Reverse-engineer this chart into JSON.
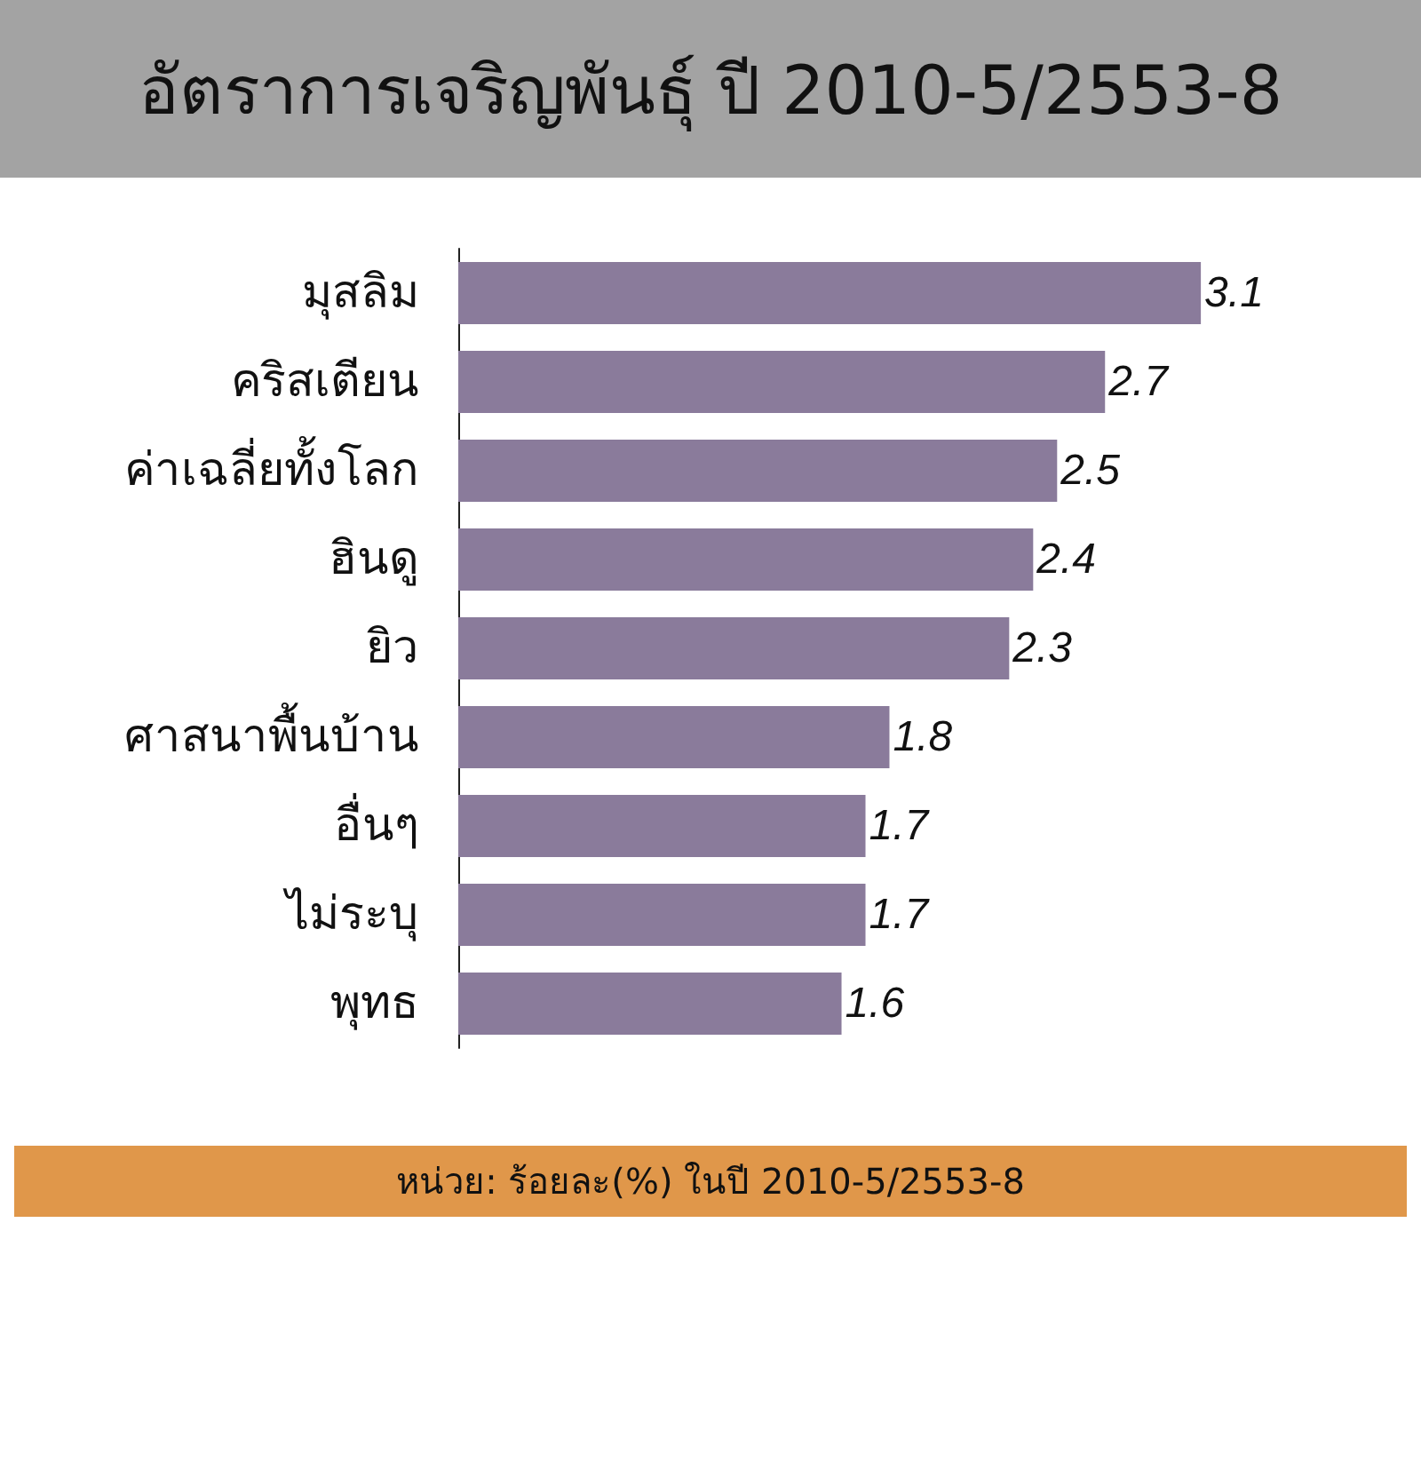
{
  "chart_data": {
    "type": "bar",
    "orientation": "horizontal",
    "title": "อัตราการเจริญพันธุ์ ปี 2010-5/2553-8",
    "categories": [
      "มุสลิม",
      "คริสเตียน",
      "ค่าเฉลี่ยทั้งโลก",
      "ฮินดู",
      "ยิว",
      "ศาสนาพื้นบ้าน",
      "อื่นๆ",
      "ไม่ระบุ",
      "พุทธ"
    ],
    "values": [
      3.1,
      2.7,
      2.5,
      2.4,
      2.3,
      1.8,
      1.7,
      1.7,
      1.6
    ],
    "color": "#8a7b9b",
    "data_labels": true,
    "tick_labels": "y",
    "annotations": [
      "หน่วย: ร้อยละ(%) ในปี 2010-5/2553-8"
    ]
  }
}
